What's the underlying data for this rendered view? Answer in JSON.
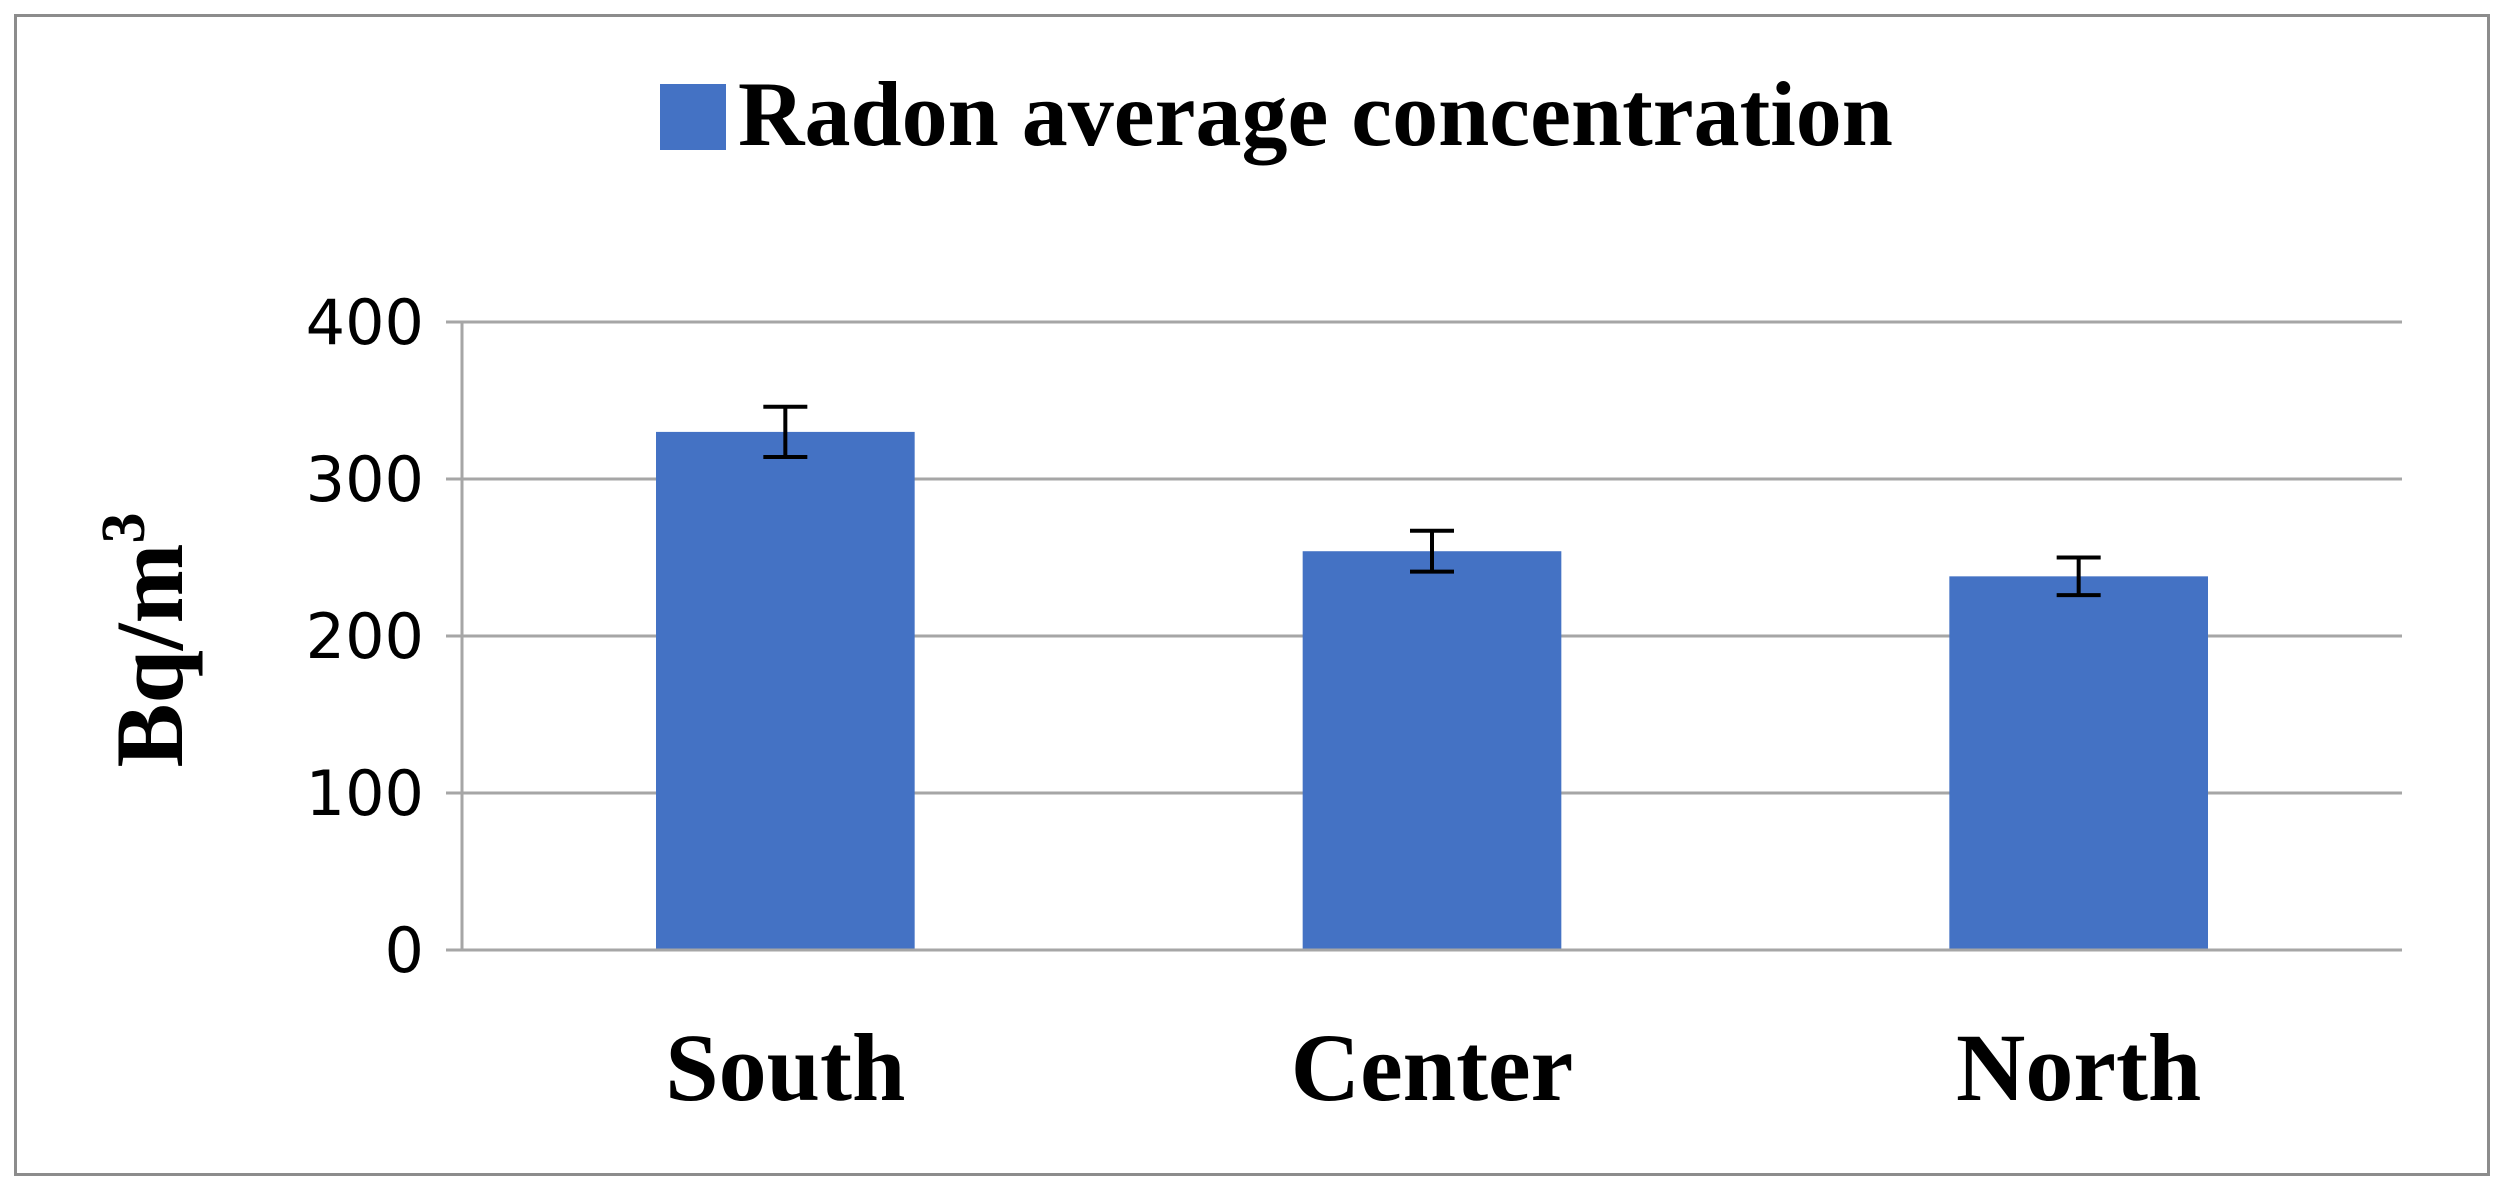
{
  "chart_data": {
    "type": "bar",
    "categories": [
      "South",
      "Center",
      "North"
    ],
    "series": [
      {
        "name": "Radon average concentration",
        "values": [
          330,
          254,
          238
        ],
        "error": [
          16,
          13,
          12
        ],
        "color": "#4472c4"
      }
    ],
    "ylabel": "Bq/m",
    "ylabel_superscript": "3",
    "ylim": [
      0,
      400
    ],
    "yticks": [
      0,
      100,
      200,
      300,
      400
    ],
    "ytick_labels": [
      "0",
      "100",
      "200",
      "300",
      "400"
    ],
    "grid": true,
    "legend_position": "top-center",
    "colors": {
      "bar": "#4472c4",
      "grid": "#a6a6a6",
      "frame": "#8c8c8c",
      "errorbar": "#000000"
    }
  }
}
